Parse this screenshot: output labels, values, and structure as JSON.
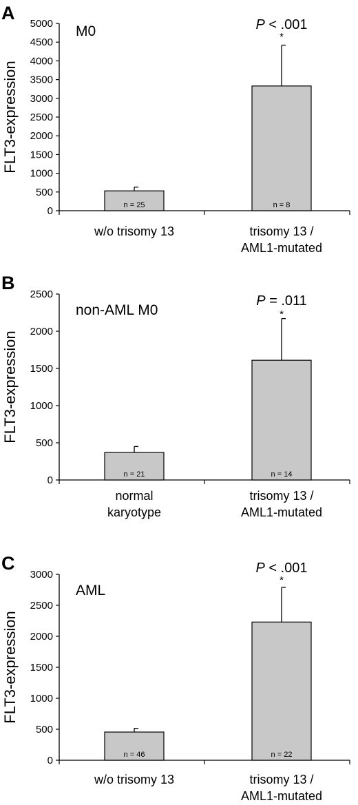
{
  "chart_data": [
    {
      "type": "bar",
      "panel": "A",
      "inset_label": "M0",
      "ylabel": "FLT3-expression",
      "ylim": [
        0,
        5000
      ],
      "yticks": [
        0,
        500,
        1000,
        1500,
        2000,
        2500,
        3000,
        3500,
        4000,
        4500,
        5000
      ],
      "categories": [
        [
          "w/o trisomy 13"
        ],
        [
          "trisomy 13 /",
          "AML1-mutated"
        ]
      ],
      "values": [
        530,
        3330
      ],
      "error_upper": [
        630,
        4420
      ],
      "n_labels": [
        "n = 25",
        "n = 8"
      ],
      "significance": {
        "p_prefix": "P",
        "p_text": " < .001",
        "marker": "*",
        "bar_index": 1
      },
      "bar_color": "#c8c8c8",
      "grid": false
    },
    {
      "type": "bar",
      "panel": "B",
      "inset_label": "non-AML M0",
      "ylabel": "FLT3-expression",
      "ylim": [
        0,
        2500
      ],
      "yticks": [
        0,
        500,
        1000,
        1500,
        2000,
        2500
      ],
      "categories": [
        [
          "normal",
          "karyotype"
        ],
        [
          "trisomy 13 /",
          "AML1-mutated"
        ]
      ],
      "values": [
        370,
        1610
      ],
      "error_upper": [
        450,
        2170
      ],
      "n_labels": [
        "n = 21",
        "n = 14"
      ],
      "significance": {
        "p_prefix": "P",
        "p_text": " = .011",
        "marker": "*",
        "bar_index": 1
      },
      "bar_color": "#c8c8c8",
      "grid": false
    },
    {
      "type": "bar",
      "panel": "C",
      "inset_label": "AML",
      "ylabel": "FLT3-expression",
      "ylim": [
        0,
        3000
      ],
      "yticks": [
        0,
        500,
        1000,
        1500,
        2000,
        2500,
        3000
      ],
      "categories": [
        [
          "w/o trisomy 13"
        ],
        [
          "trisomy 13 /",
          "AML1-mutated"
        ]
      ],
      "values": [
        455,
        2230
      ],
      "error_upper": [
        515,
        2790
      ],
      "n_labels": [
        "n = 46",
        "n = 22"
      ],
      "significance": {
        "p_prefix": "P",
        "p_text": " < .001",
        "marker": "*",
        "bar_index": 1
      },
      "bar_color": "#c8c8c8",
      "grid": false
    }
  ]
}
